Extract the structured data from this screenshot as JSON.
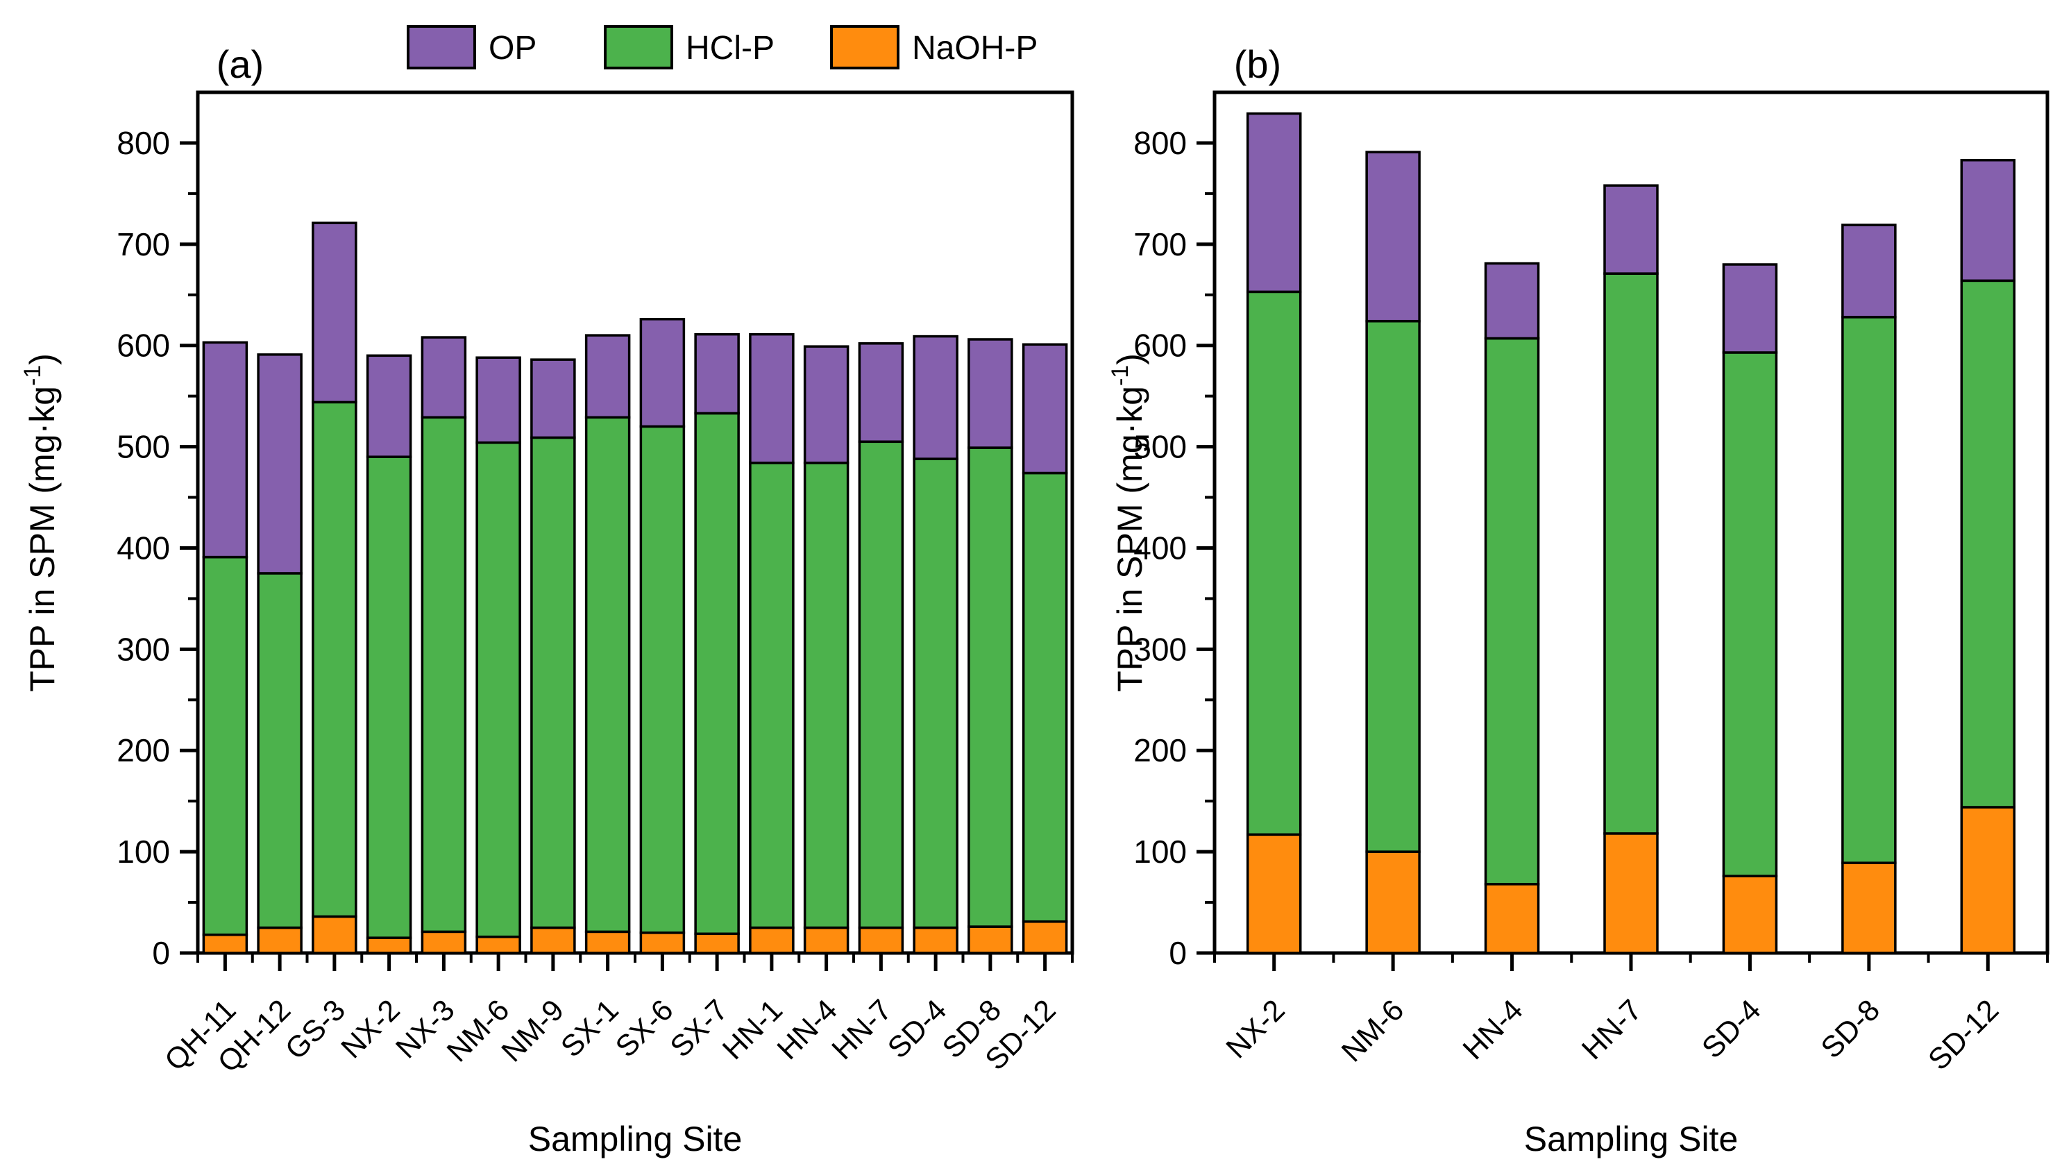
{
  "figure": {
    "background": "#ffffff",
    "stroke_color": "#000000",
    "legend": {
      "items": [
        {
          "label": "OP",
          "color": "#8560AD"
        },
        {
          "label": "HCl-P",
          "color": "#4CB24C"
        },
        {
          "label": "NaOH-P",
          "color": "#FF8C0E"
        }
      ]
    }
  },
  "chart_data": [
    {
      "type": "bar",
      "stacked": true,
      "panel_label": "(a)",
      "xlabel": "Sampling Site",
      "ylabel": {
        "prefix": "TPP in SPM (mg·kg",
        "superscript": "-1",
        "suffix": ")"
      },
      "ylim": [
        0,
        850
      ],
      "yticks": [
        0,
        100,
        200,
        300,
        400,
        500,
        600,
        700,
        800
      ],
      "ytick_minor_step": 50,
      "grid": false,
      "legend_position": "top",
      "categories": [
        "QH-11",
        "QH-12",
        "GS-3",
        "NX-2",
        "NX-3",
        "NM-6",
        "NM-9",
        "SX-1",
        "SX-6",
        "SX-7",
        "HN-1",
        "HN-4",
        "HN-7",
        "SD-4",
        "SD-8",
        "SD-12"
      ],
      "series": [
        {
          "name": "NaOH-P",
          "color": "#FF8C0E",
          "values": [
            18,
            25,
            36,
            15,
            21,
            16,
            25,
            21,
            20,
            19,
            25,
            25,
            25,
            25,
            26,
            31
          ]
        },
        {
          "name": "HCl-P",
          "color": "#4CB24C",
          "values": [
            373,
            350,
            508,
            475,
            508,
            488,
            484,
            508,
            500,
            514,
            459,
            459,
            480,
            463,
            473,
            443
          ]
        },
        {
          "name": "OP",
          "color": "#8560AD",
          "values": [
            212,
            216,
            177,
            100,
            79,
            84,
            77,
            81,
            106,
            78,
            127,
            115,
            97,
            121,
            107,
            127
          ]
        }
      ],
      "totals": [
        603,
        591,
        721,
        590,
        608,
        588,
        586,
        610,
        626,
        611,
        611,
        599,
        602,
        609,
        606,
        601
      ]
    },
    {
      "type": "bar",
      "stacked": true,
      "panel_label": "(b)",
      "xlabel": "Sampling Site",
      "ylabel": {
        "prefix": "TPP in SPM (mg·kg",
        "superscript": "-1",
        "suffix": ")"
      },
      "ylim": [
        0,
        850
      ],
      "yticks": [
        0,
        100,
        200,
        300,
        400,
        500,
        600,
        700,
        800
      ],
      "ytick_minor_step": 50,
      "grid": false,
      "legend_position": "none",
      "categories": [
        "NX-2",
        "NM-6",
        "HN-4",
        "HN-7",
        "SD-4",
        "SD-8",
        "SD-12"
      ],
      "series": [
        {
          "name": "NaOH-P",
          "color": "#FF8C0E",
          "values": [
            117,
            100,
            68,
            118,
            76,
            89,
            144
          ]
        },
        {
          "name": "HCl-P",
          "color": "#4CB24C",
          "values": [
            536,
            524,
            539,
            553,
            517,
            539,
            520
          ]
        },
        {
          "name": "OP",
          "color": "#8560AD",
          "values": [
            176,
            167,
            74,
            87,
            87,
            91,
            119
          ]
        }
      ],
      "totals": [
        829,
        791,
        681,
        758,
        680,
        719,
        783
      ]
    }
  ]
}
